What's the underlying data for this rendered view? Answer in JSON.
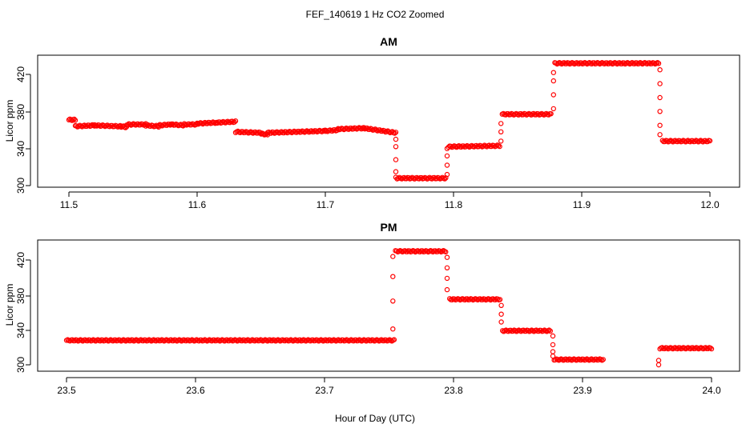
{
  "figure": {
    "title": "FEF_140619  1 Hz CO2 Zoomed",
    "xlabel": "Hour of Day (UTC)"
  },
  "colors": {
    "marker": "#ff0000",
    "axis": "#000000",
    "background": "#ffffff"
  },
  "chart_data": [
    {
      "type": "scatter",
      "title": "AM",
      "xlabel": "",
      "ylabel": "Licor ppm",
      "xlim": [
        11.5,
        12.0
      ],
      "ylim": [
        300,
        440
      ],
      "xticks": [
        "11.5",
        "11.6",
        "11.7",
        "11.8",
        "11.9",
        "12.0"
      ],
      "yticks": [
        "300",
        "340",
        "380",
        "420"
      ],
      "grid": false,
      "segments": [
        {
          "x": [
            11.5,
            11.505
          ],
          "y": [
            371,
            371
          ]
        },
        {
          "x": [
            11.505,
            11.52
          ],
          "y": [
            364,
            365
          ]
        },
        {
          "x": [
            11.52,
            11.54
          ],
          "y": [
            365,
            364
          ]
        },
        {
          "x": [
            11.54,
            11.545
          ],
          "y": [
            364,
            363
          ]
        },
        {
          "x": [
            11.545,
            11.56
          ],
          "y": [
            366,
            366
          ]
        },
        {
          "x": [
            11.56,
            11.57
          ],
          "y": [
            365,
            364
          ]
        },
        {
          "x": [
            11.57,
            11.58
          ],
          "y": [
            365,
            366
          ]
        },
        {
          "x": [
            11.58,
            11.59
          ],
          "y": [
            366,
            365
          ]
        },
        {
          "x": [
            11.59,
            11.6
          ],
          "y": [
            366,
            366
          ]
        },
        {
          "x": [
            11.6,
            11.615
          ],
          "y": [
            367,
            368
          ]
        },
        {
          "x": [
            11.615,
            11.63
          ],
          "y": [
            368,
            369
          ]
        },
        {
          "x": [
            11.63,
            11.65
          ],
          "y": [
            358,
            357
          ]
        },
        {
          "x": [
            11.65,
            11.655
          ],
          "y": [
            356,
            355
          ]
        },
        {
          "x": [
            11.655,
            11.7
          ],
          "y": [
            357,
            359
          ]
        },
        {
          "x": [
            11.7,
            11.71
          ],
          "y": [
            359,
            360
          ]
        },
        {
          "x": [
            11.71,
            11.73
          ],
          "y": [
            361,
            362
          ]
        },
        {
          "x": [
            11.73,
            11.755
          ],
          "y": [
            362,
            357
          ]
        },
        {
          "x": [
            11.756,
            11.794
          ],
          "y": [
            308,
            308
          ]
        },
        {
          "x": [
            11.796,
            11.836
          ],
          "y": [
            342,
            343
          ]
        },
        {
          "x": [
            11.838,
            11.876
          ],
          "y": [
            377,
            377
          ]
        },
        {
          "x": [
            11.879,
            11.96
          ],
          "y": [
            432,
            432
          ]
        },
        {
          "x": [
            11.963,
            12.0
          ],
          "y": [
            348,
            348
          ]
        }
      ],
      "transitions": [
        {
          "x": 11.755,
          "y": [
            350,
            342,
            328,
            315,
            309
          ]
        },
        {
          "x": 11.795,
          "y": [
            312,
            322,
            332,
            340
          ]
        },
        {
          "x": 11.837,
          "y": [
            348,
            358,
            367
          ]
        },
        {
          "x": 11.878,
          "y": [
            383,
            398,
            413,
            422
          ]
        },
        {
          "x": 11.961,
          "y": [
            425,
            410,
            395,
            380,
            365,
            355
          ]
        }
      ]
    },
    {
      "type": "scatter",
      "title": "PM",
      "xlabel": "",
      "ylabel": "Licor ppm",
      "xlim": [
        23.5,
        24.0
      ],
      "ylim": [
        300,
        440
      ],
      "xticks": [
        "23.5",
        "23.6",
        "23.7",
        "23.8",
        "23.9",
        "24.0"
      ],
      "yticks": [
        "300",
        "340",
        "380",
        "420"
      ],
      "grid": false,
      "segments": [
        {
          "x": [
            23.5,
            23.754
          ],
          "y": [
            328,
            328
          ]
        },
        {
          "x": [
            23.755,
            23.794
          ],
          "y": [
            430,
            430
          ]
        },
        {
          "x": [
            23.797,
            23.836
          ],
          "y": [
            375,
            375
          ]
        },
        {
          "x": [
            23.838,
            23.875
          ],
          "y": [
            339,
            339
          ]
        },
        {
          "x": [
            23.878,
            23.916
          ],
          "y": [
            306,
            306
          ]
        },
        {
          "x": [
            23.96,
            24.0
          ],
          "y": [
            319,
            319
          ]
        }
      ],
      "transitions": [
        {
          "x": 23.753,
          "y": [
            341,
            373,
            401,
            424
          ]
        },
        {
          "x": 23.795,
          "y": [
            423,
            411,
            399,
            386
          ]
        },
        {
          "x": 23.837,
          "y": [
            368,
            358,
            349
          ]
        },
        {
          "x": 23.877,
          "y": [
            333,
            323,
            315,
            310
          ]
        },
        {
          "x": 23.959,
          "y": [
            305,
            300
          ]
        }
      ]
    }
  ]
}
